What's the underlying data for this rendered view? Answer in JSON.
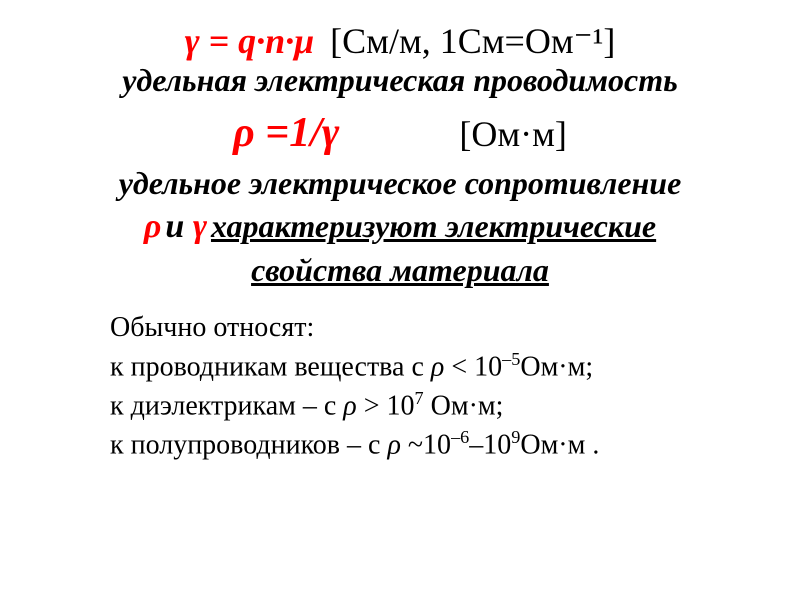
{
  "line1": {
    "formula": "γ = q·n·μ",
    "units": "[См/м, 1См=Ом⁻¹]"
  },
  "line2": "удельная электрическая проводимость",
  "line3": {
    "formula": "ρ =1/γ",
    "units": "[Ом·м]"
  },
  "line4": "удельное электрическое сопротивление",
  "char": {
    "rho": "ρ",
    "between": " и ",
    "gamma": "γ",
    "text1": " характеризуют электрические",
    "text2": "свойства материала"
  },
  "body": {
    "intro": "Обычно относят:",
    "l1_a": "к проводникам вещества с ",
    "l1_rho": "ρ",
    "l1_b": " < 10",
    "l1_exp": "–5",
    "l1_c": "Ом·м;",
    "l2_a": "к диэлектрикам – с ",
    "l2_rho": "ρ",
    "l2_b": " > 10",
    "l2_exp": "7",
    "l2_c": " Ом·м;",
    "l3_a": "к полупроводников – с ",
    "l3_rho": "ρ",
    "l3_b": " ~10",
    "l3_exp1": "–6",
    "l3_mid": "–10",
    "l3_exp2": "9",
    "l3_c": "Ом·м ."
  },
  "colors": {
    "red": "#ff0000",
    "black": "#000000",
    "bg": "#ffffff"
  }
}
